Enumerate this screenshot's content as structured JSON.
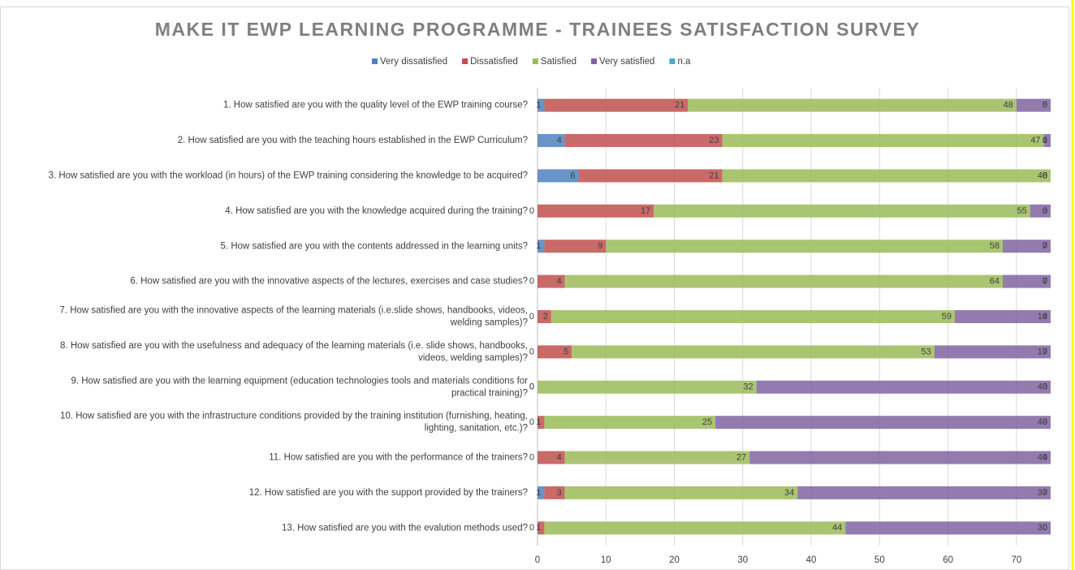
{
  "chart_data": {
    "type": "stacked_bar_horizontal",
    "title": "MAKE IT  EWP LEARNING PROGRAMME - TRAINEES SATISFACTION SURVEY",
    "categories": [
      "1. How satisfied are you with the quality level of the EWP training course?",
      "2. How satisfied are you with the teaching hours established in the EWP Curriculum?",
      "3. How satisfied are you with the workload (in hours) of the EWP training considering the knowledge to be acquired?",
      "4. How satisfied are you with the knowledge acquired during the training?",
      "5. How satisfied are you with the contents addressed in the learning units?",
      "6. How satisfied are you with the innovative aspects of the lectures, exercises and case studies?",
      "7. How satisfied are you with the innovative aspects of the learning materials (i.e.slide shows, handbooks, videos, welding samples)?",
      "8. How satisfied are you with the usefulness and adequacy of the learning materials (i.e. slide shows, handbooks, videos, welding samples)?",
      "9. How satisfied are you with the learning equipment (education technologies tools and materials conditions for practical training)?",
      "10. How satisfied are you with the infrastructure conditions provided by the training institution (furnishing, heating, lighting, sanitation, etc.)?",
      "11. How satisfied are you with the performance of the trainers?",
      "12. How satisfied are you with the support provided by the trainers?",
      "13. How satisfied are you with the evalution methods used?"
    ],
    "series": [
      {
        "name": "Very dissatisfied",
        "color": "#4f81bd",
        "values": [
          1,
          4,
          6,
          0,
          1,
          0,
          0,
          0,
          0,
          0,
          0,
          1,
          0
        ]
      },
      {
        "name": "Dissatisfied",
        "color": "#c0504d",
        "values": [
          21,
          23,
          21,
          17,
          9,
          4,
          2,
          5,
          0,
          1,
          4,
          3,
          1
        ]
      },
      {
        "name": "Satisfied",
        "color": "#9bbb59",
        "values": [
          48,
          47,
          48,
          55,
          58,
          64,
          59,
          53,
          32,
          25,
          27,
          34,
          44
        ]
      },
      {
        "name": "Very satisfied",
        "color": "#8064a2",
        "values": [
          5,
          1,
          0,
          3,
          7,
          7,
          14,
          17,
          43,
          49,
          44,
          37,
          30
        ]
      },
      {
        "name": "n.a",
        "color": "#4bacc6",
        "values": [
          0,
          0,
          0,
          0,
          0,
          0,
          0,
          0,
          0,
          0,
          0,
          0,
          0
        ]
      }
    ],
    "xlim": [
      0,
      75
    ],
    "xticks": [
      0,
      10,
      20,
      30,
      40,
      50,
      60,
      70
    ],
    "grid": true,
    "legend": "top"
  }
}
